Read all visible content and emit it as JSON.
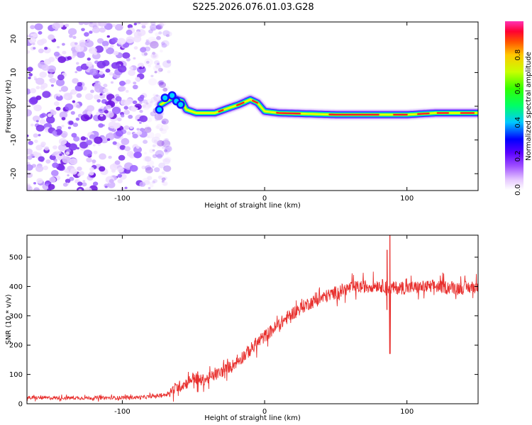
{
  "title": "S225.2026.076.01.03.G28",
  "chart_data": [
    {
      "type": "heatmap",
      "title": "S225.2026.076.01.03.G28",
      "xlabel": "Height of straight line (km)",
      "ylabel": "Frequency (Hz)",
      "xlim": [
        -167,
        150
      ],
      "ylim": [
        -25,
        25
      ],
      "xticks": [
        -100,
        0,
        100
      ],
      "yticks": [
        -20,
        -10,
        0,
        10,
        20
      ],
      "colorbar": {
        "label": "Normalized spectral amplitude",
        "range": [
          0,
          1
        ],
        "ticks": [
          0.0,
          0.2,
          0.4,
          0.6,
          0.8
        ]
      },
      "noise_region_x": [
        -167,
        -77
      ],
      "trace": [
        {
          "x": -73,
          "f": 0.5
        },
        {
          "x": -65,
          "f": 2.5
        },
        {
          "x": -58,
          "f": 1.5
        },
        {
          "x": -55,
          "f": -1.0
        },
        {
          "x": -48,
          "f": -2.0
        },
        {
          "x": -35,
          "f": -2.0
        },
        {
          "x": -25,
          "f": -0.5
        },
        {
          "x": -18,
          "f": 0.5
        },
        {
          "x": -10,
          "f": 2.0
        },
        {
          "x": -5,
          "f": 1.0
        },
        {
          "x": 0,
          "f": -1.5
        },
        {
          "x": 10,
          "f": -2.0
        },
        {
          "x": 50,
          "f": -2.5
        },
        {
          "x": 80,
          "f": -2.5
        },
        {
          "x": 100,
          "f": -2.5
        },
        {
          "x": 120,
          "f": -2.0
        },
        {
          "x": 150,
          "f": -2.0
        }
      ]
    },
    {
      "type": "line",
      "xlabel": "Height of straight line (km)",
      "ylabel": "SNR (10 * v/v)",
      "xlim": [
        -167,
        150
      ],
      "ylim": [
        0,
        575
      ],
      "xticks": [
        -100,
        0,
        100
      ],
      "yticks": [
        0,
        100,
        200,
        300,
        400,
        500
      ],
      "color": "#e8302e",
      "series": [
        {
          "name": "SNR",
          "x": [
            -167,
            -140,
            -110,
            -85,
            -70,
            -62,
            -55,
            -50,
            -45,
            -40,
            -30,
            -20,
            -10,
            0,
            10,
            20,
            30,
            40,
            50,
            60,
            70,
            80,
            85,
            88,
            92,
            100,
            120,
            140,
            150
          ],
          "y": [
            20,
            20,
            20,
            22,
            30,
            55,
            70,
            90,
            80,
            85,
            110,
            140,
            185,
            230,
            270,
            310,
            340,
            360,
            380,
            395,
            400,
            405,
            400,
            395,
            395,
            395,
            400,
            395,
            400
          ]
        }
      ],
      "spikes": [
        {
          "x": 86,
          "min": 320,
          "max": 525
        },
        {
          "x": 88,
          "min": 170,
          "max": 575
        },
        {
          "x": -47,
          "min": 40,
          "max": 110
        }
      ]
    }
  ]
}
